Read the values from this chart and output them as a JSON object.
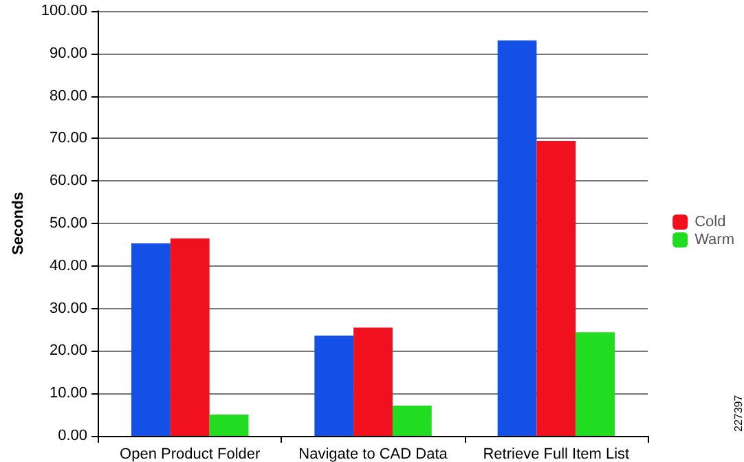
{
  "chart_data": {
    "type": "bar",
    "ylabel": "Seconds",
    "categories": [
      "Open Product Folder",
      "Navigate to CAD Data",
      "Retrieve Full Item List"
    ],
    "series": [
      {
        "color": "#1450e6",
        "values": [
          45.3,
          23.6,
          93.1
        ]
      },
      {
        "name": "Cold",
        "color": "#f0101e",
        "values": [
          46.5,
          25.5,
          69.4
        ]
      },
      {
        "name": "Warm",
        "color": "#22dc22",
        "values": [
          5.0,
          7.1,
          24.4
        ]
      }
    ],
    "ylim": [
      0,
      100
    ],
    "yticks": [
      {
        "value": 0,
        "label": "0.00"
      },
      {
        "value": 10,
        "label": "10.00"
      },
      {
        "value": 20,
        "label": "20.00"
      },
      {
        "value": 30,
        "label": "30.00"
      },
      {
        "value": 40,
        "label": "40.00"
      },
      {
        "value": 50,
        "label": "50.00"
      },
      {
        "value": 60,
        "label": "60.00"
      },
      {
        "value": 70,
        "label": "70.00"
      },
      {
        "value": 80,
        "label": "80.00"
      },
      {
        "value": 90,
        "label": "90.00"
      },
      {
        "value": 100,
        "label": "100.00"
      }
    ],
    "grid": "y",
    "legend": "right",
    "annotations": [
      "227397"
    ]
  }
}
